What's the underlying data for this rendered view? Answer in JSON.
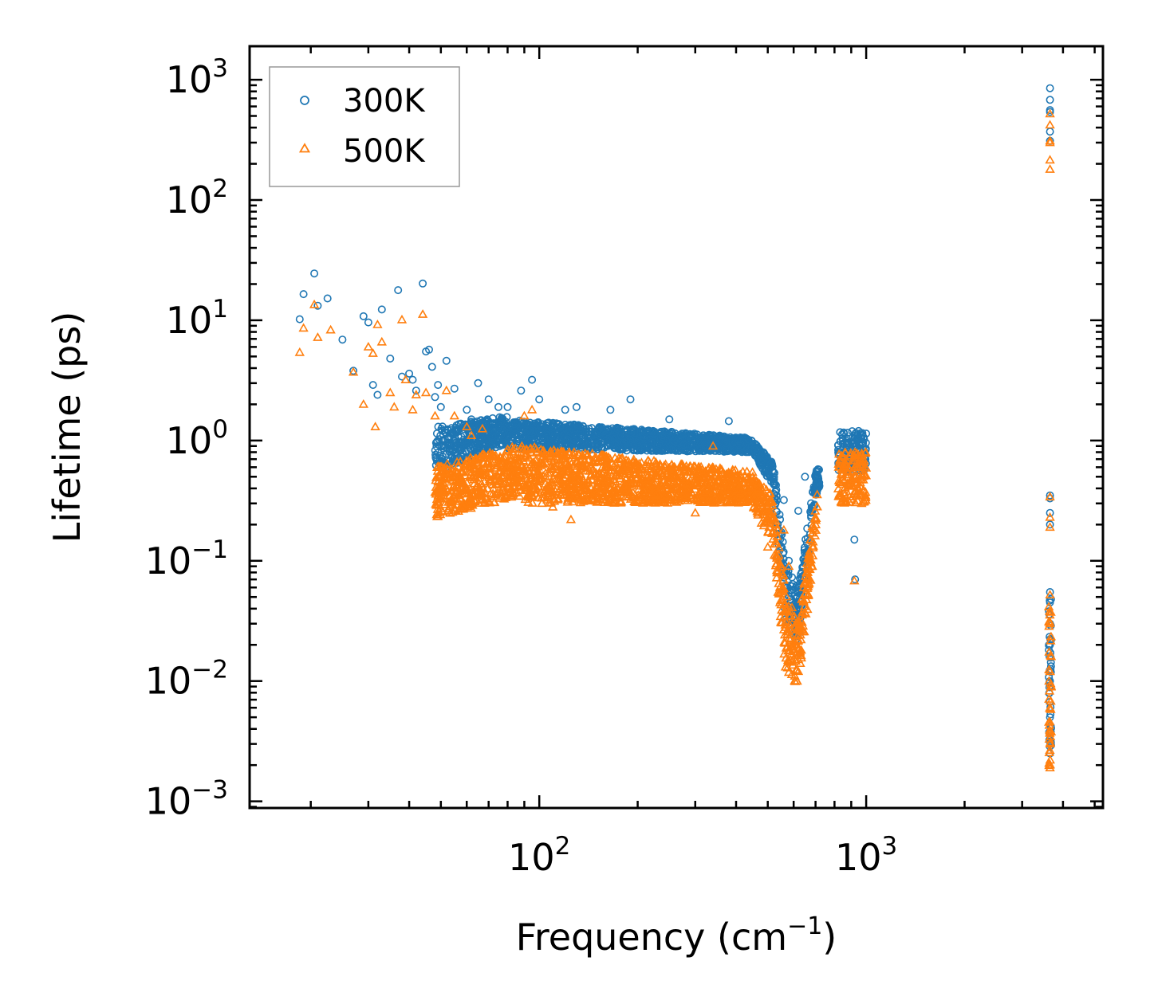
{
  "chart_data": {
    "type": "scatter",
    "xscale": "log",
    "yscale": "log",
    "xlabel": "Frequency (cm",
    "xlabel_sup": "−1",
    "xlabel_end": ")",
    "ylabel": "Lifetime (ps)",
    "xlim": [
      13,
      5300
    ],
    "ylim": [
      0.00088,
      1900
    ],
    "x_ticks": [
      {
        "value": 100,
        "base": "10",
        "exp": "2"
      },
      {
        "value": 1000,
        "base": "10",
        "exp": "3"
      }
    ],
    "y_ticks": [
      {
        "value": 0.001,
        "base": "10",
        "exp": "−3"
      },
      {
        "value": 0.01,
        "base": "10",
        "exp": "−2"
      },
      {
        "value": 0.1,
        "base": "10",
        "exp": "−1"
      },
      {
        "value": 1,
        "base": "10",
        "exp": "0"
      },
      {
        "value": 10,
        "base": "10",
        "exp": "1"
      },
      {
        "value": 100,
        "base": "10",
        "exp": "2"
      },
      {
        "value": 1000,
        "base": "10",
        "exp": "3"
      }
    ],
    "legend_position": "top-left",
    "series": [
      {
        "name": "300K",
        "marker": "circle",
        "color": "#1f77b4",
        "points": [
          [
            18.5,
            10.2
          ],
          [
            19,
            16.5
          ],
          [
            20.5,
            24.5
          ],
          [
            21,
            13.2
          ],
          [
            22.5,
            15.2
          ],
          [
            25,
            6.9
          ],
          [
            27,
            3.8
          ],
          [
            29,
            10.8
          ],
          [
            30,
            9.6
          ],
          [
            31,
            2.9
          ],
          [
            32,
            2.4
          ],
          [
            33,
            12.3
          ],
          [
            35,
            4.8
          ],
          [
            37,
            17.8
          ],
          [
            38,
            3.4
          ],
          [
            40,
            3.6
          ],
          [
            41,
            3.2
          ],
          [
            42,
            2.6
          ],
          [
            44,
            20.2
          ],
          [
            45,
            5.5
          ],
          [
            46,
            5.7
          ],
          [
            47,
            4.1
          ],
          [
            48,
            2.3
          ],
          [
            49,
            2.9
          ],
          [
            50,
            1.9
          ],
          [
            52,
            4.6
          ],
          [
            55,
            2.7
          ],
          [
            60,
            1.8
          ],
          [
            62,
            1.5
          ],
          [
            65,
            3.0
          ],
          [
            70,
            2.2
          ],
          [
            75,
            1.9
          ],
          [
            80,
            1.9
          ],
          [
            88,
            2.6
          ],
          [
            95,
            3.2
          ],
          [
            100,
            2.2
          ],
          [
            120,
            1.8
          ],
          [
            130,
            1.9
          ],
          [
            165,
            1.8
          ],
          [
            190,
            2.2
          ],
          [
            250,
            1.5
          ],
          [
            380,
            1.45
          ],
          [
            420,
            1.05
          ],
          [
            500,
            0.68
          ],
          [
            520,
            0.55
          ],
          [
            560,
            0.32
          ],
          [
            580,
            0.1
          ],
          [
            620,
            0.26
          ],
          [
            650,
            0.5
          ],
          [
            920,
            0.15
          ],
          [
            925,
            0.07
          ],
          [
            3650,
            850
          ],
          [
            3650,
            680
          ],
          [
            3650,
            560
          ],
          [
            3650,
            540
          ],
          [
            3650,
            370
          ],
          [
            3650,
            310
          ],
          [
            3650,
            0.35
          ],
          [
            3650,
            0.33
          ],
          [
            3650,
            0.25
          ],
          [
            3650,
            0.2
          ],
          [
            3650,
            0.055
          ],
          [
            3650,
            0.045
          ],
          [
            3650,
            0.03
          ],
          [
            3650,
            0.02
          ],
          [
            3650,
            0.01
          ],
          [
            3650,
            0.005
          ],
          [
            3650,
            0.0025
          ]
        ]
      },
      {
        "name": "500K",
        "marker": "triangle",
        "color": "#ff7f0e",
        "points": [
          [
            18.5,
            5.4
          ],
          [
            19,
            8.6
          ],
          [
            20.5,
            13.5
          ],
          [
            21,
            7.2
          ],
          [
            23,
            8.3
          ],
          [
            27,
            3.7
          ],
          [
            29,
            2.0
          ],
          [
            30,
            6.0
          ],
          [
            31,
            5.3
          ],
          [
            31.5,
            1.3
          ],
          [
            32,
            9.2
          ],
          [
            33,
            6.6
          ],
          [
            35,
            2.5
          ],
          [
            36,
            1.9
          ],
          [
            38,
            10.1
          ],
          [
            39,
            3.2
          ],
          [
            41,
            1.8
          ],
          [
            42,
            2.4
          ],
          [
            44,
            11.2
          ],
          [
            45,
            2.5
          ],
          [
            48,
            1.6
          ],
          [
            52,
            2.6
          ],
          [
            55,
            1.6
          ],
          [
            60,
            1.3
          ],
          [
            62,
            1.1
          ],
          [
            67,
            1.25
          ],
          [
            90,
            1.6
          ],
          [
            95,
            1.8
          ],
          [
            110,
            0.28
          ],
          [
            125,
            0.22
          ],
          [
            145,
            0.32
          ],
          [
            200,
            0.32
          ],
          [
            300,
            0.25
          ],
          [
            340,
            0.9
          ],
          [
            450,
            0.5
          ],
          [
            470,
            0.4
          ],
          [
            500,
            0.13
          ],
          [
            560,
            0.18
          ],
          [
            580,
            0.09
          ],
          [
            620,
            0.012
          ],
          [
            920,
            0.068
          ],
          [
            3650,
            520
          ],
          [
            3650,
            420
          ],
          [
            3650,
            310
          ],
          [
            3650,
            300
          ],
          [
            3650,
            215
          ],
          [
            3650,
            180
          ],
          [
            3650,
            0.34
          ],
          [
            3650,
            0.23
          ],
          [
            3650,
            0.19
          ],
          [
            3650,
            0.052
          ],
          [
            3650,
            0.03
          ],
          [
            3650,
            0.012
          ],
          [
            3650,
            0.006
          ],
          [
            3650,
            0.003
          ],
          [
            3650,
            0.0019
          ]
        ]
      }
    ],
    "dense_bands": [
      {
        "series": "300K",
        "x": [
          48,
          80
        ],
        "y_lo": [
          0.55,
          0.95
        ],
        "y_hi": [
          1.3,
          1.6
        ]
      },
      {
        "series": "300K",
        "x": [
          80,
          450
        ],
        "y_lo": [
          0.85,
          0.8
        ],
        "y_hi": [
          1.5,
          1.05
        ]
      },
      {
        "series": "300K",
        "x": [
          450,
          520
        ],
        "y_lo": [
          0.8,
          0.4
        ],
        "y_hi": [
          1.0,
          0.65
        ]
      },
      {
        "series": "300K",
        "x": [
          520,
          565
        ],
        "y_lo": [
          0.4,
          0.03
        ],
        "y_hi": [
          0.65,
          0.1
        ]
      },
      {
        "series": "300K",
        "x": [
          565,
          620
        ],
        "y_lo": [
          0.03,
          0.02
        ],
        "y_hi": [
          0.1,
          0.06
        ]
      },
      {
        "series": "300K",
        "x": [
          620,
          700
        ],
        "y_lo": [
          0.02,
          0.35
        ],
        "y_hi": [
          0.06,
          0.55
        ]
      },
      {
        "series": "300K",
        "x": [
          700,
          720
        ],
        "y_lo": [
          0.35,
          0.4
        ],
        "y_hi": [
          0.55,
          0.6
        ]
      },
      {
        "series": "300K",
        "x": [
          820,
          1000
        ],
        "y_lo": [
          0.55,
          0.55
        ],
        "y_hi": [
          1.2,
          1.2
        ]
      },
      {
        "series": "500K",
        "x": [
          48,
          90
        ],
        "y_lo": [
          0.23,
          0.35
        ],
        "y_hi": [
          0.6,
          0.95
        ]
      },
      {
        "series": "500K",
        "x": [
          90,
          450
        ],
        "y_lo": [
          0.3,
          0.3
        ],
        "y_hi": [
          0.9,
          0.55
        ]
      },
      {
        "series": "500K",
        "x": [
          450,
          520
        ],
        "y_lo": [
          0.28,
          0.13
        ],
        "y_hi": [
          0.5,
          0.35
        ]
      },
      {
        "series": "500K",
        "x": [
          520,
          565
        ],
        "y_lo": [
          0.13,
          0.013
        ],
        "y_hi": [
          0.35,
          0.06
        ]
      },
      {
        "series": "500K",
        "x": [
          565,
          620
        ],
        "y_lo": [
          0.013,
          0.009
        ],
        "y_hi": [
          0.06,
          0.03
        ]
      },
      {
        "series": "500K",
        "x": [
          620,
          710
        ],
        "y_lo": [
          0.009,
          0.2
        ],
        "y_hi": [
          0.03,
          0.4
        ]
      },
      {
        "series": "500K",
        "x": [
          820,
          1000
        ],
        "y_lo": [
          0.3,
          0.3
        ],
        "y_hi": [
          0.8,
          0.8
        ]
      },
      {
        "series": "500K",
        "x": [
          3620,
          3680
        ],
        "y_lo": [
          0.0019,
          0.0019
        ],
        "y_hi": [
          0.045,
          0.045
        ]
      },
      {
        "series": "300K",
        "x": [
          3620,
          3680
        ],
        "y_lo": [
          0.0025,
          0.0025
        ],
        "y_hi": [
          0.05,
          0.05
        ]
      }
    ]
  }
}
